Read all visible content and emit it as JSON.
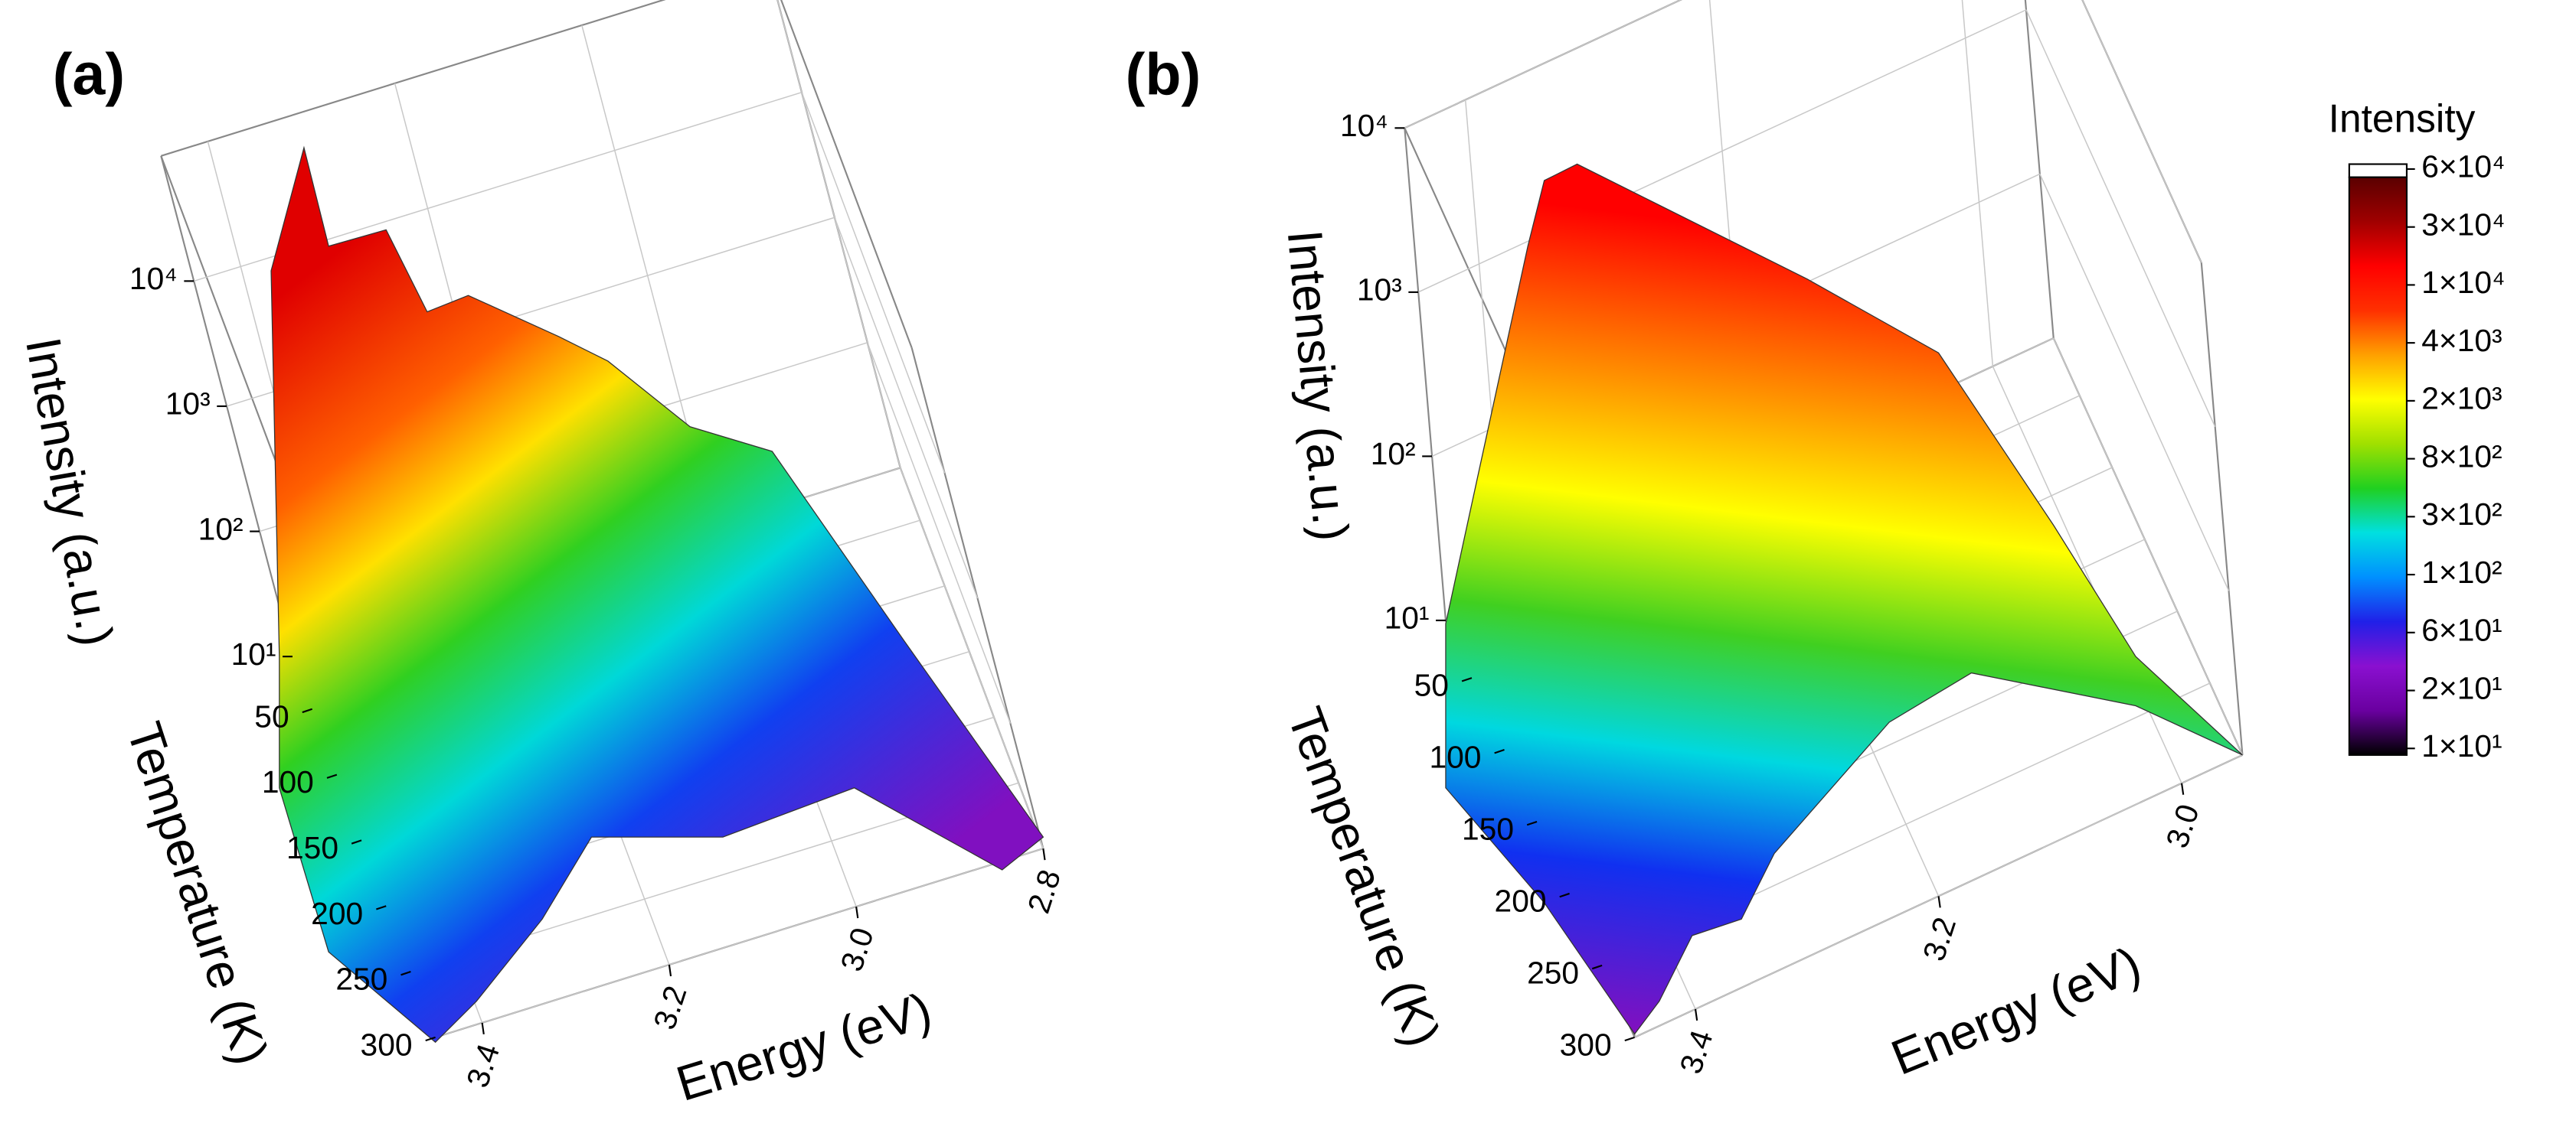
{
  "chart_data": [
    {
      "type": "surface3d",
      "title": "(a)",
      "xlabel": "Energy (eV)",
      "ylabel": "Temperature (K)",
      "zlabel": "Intensity (a.u.)",
      "xlim": [
        3.45,
        2.8
      ],
      "xticks": [
        3.4,
        3.2,
        {
          "value": 3,
          "label": "3.0"
        },
        2.8
      ],
      "ylim": [
        10,
        300
      ],
      "yticks": [
        50,
        100,
        150,
        200,
        250,
        300
      ],
      "zlim": [
        10,
        100000
      ],
      "zscale": "log",
      "zticks": [
        {
          "value": 10,
          "label": "10¹"
        },
        {
          "value": 100,
          "label": "10²"
        },
        {
          "value": 1000,
          "label": "10³"
        },
        {
          "value": 10000,
          "label": "10⁴"
        }
      ],
      "grid": true
    },
    {
      "type": "surface3d",
      "title": "(b)",
      "xlabel": "Energy (eV)",
      "ylabel": "Temperature (K)",
      "zlabel": "Intensity (a.u.)",
      "xlim": [
        3.45,
        2.95
      ],
      "xticks": [
        3.4,
        3.2,
        {
          "value": 3,
          "label": "3.0"
        }
      ],
      "ylim": [
        10,
        300
      ],
      "yticks": [
        50,
        100,
        150,
        200,
        250,
        300
      ],
      "zlim": [
        10,
        10000
      ],
      "zscale": "log",
      "zticks": [
        {
          "value": 10,
          "label": "10¹"
        },
        {
          "value": 100,
          "label": "10²"
        },
        {
          "value": 1000,
          "label": "10³"
        },
        {
          "value": 10000,
          "label": "10⁴"
        }
      ],
      "grid": true
    }
  ],
  "colorbar": {
    "title": "Intensity",
    "ticks": [
      {
        "value": 60000,
        "label": "6×10⁴"
      },
      {
        "value": 30000,
        "label": "3×10⁴"
      },
      {
        "value": 10000,
        "label": "1×10⁴"
      },
      {
        "value": 4000,
        "label": "4×10³"
      },
      {
        "value": 2000,
        "label": "2×10³"
      },
      {
        "value": 800,
        "label": "8×10²"
      },
      {
        "value": 300,
        "label": "3×10²"
      },
      {
        "value": 100,
        "label": "1×10²"
      },
      {
        "value": 60,
        "label": "6×10¹"
      },
      {
        "value": 20,
        "label": "2×10¹"
      },
      {
        "value": 10,
        "label": "1×10¹"
      }
    ],
    "colors": [
      "#000000",
      "#6a00a0",
      "#8a10d0",
      "#2020e8",
      "#0090ff",
      "#00e0e0",
      "#20d020",
      "#a0e000",
      "#ffff00",
      "#ffa000",
      "#ff3000",
      "#ff0000",
      "#a00000",
      "#5a0000"
    ]
  }
}
